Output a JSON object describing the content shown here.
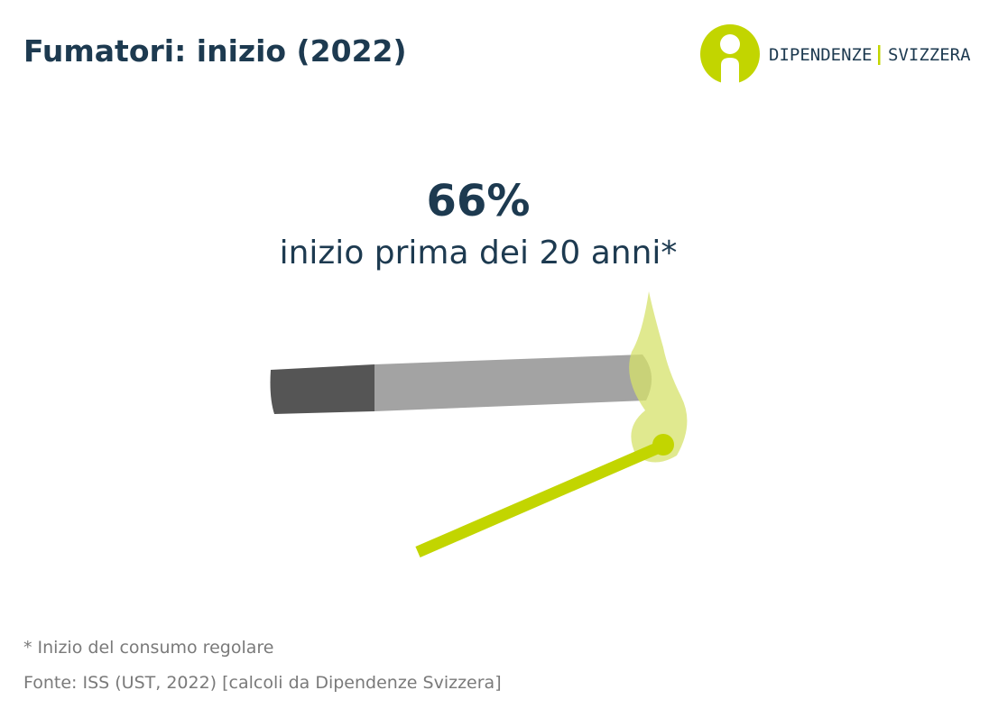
{
  "header": {
    "title": "Fumatori: inizio (2022)"
  },
  "logo": {
    "left": "DIPENDENZE",
    "right": "SVIZZERA"
  },
  "stat": {
    "value": "66%",
    "label": "inizio prima dei 20 anni*"
  },
  "footnote": "* Inizio del consumo regolare",
  "source": "Fonte: ISS (UST, 2022) [calcoli da Dipendenze Svizzera]"
}
